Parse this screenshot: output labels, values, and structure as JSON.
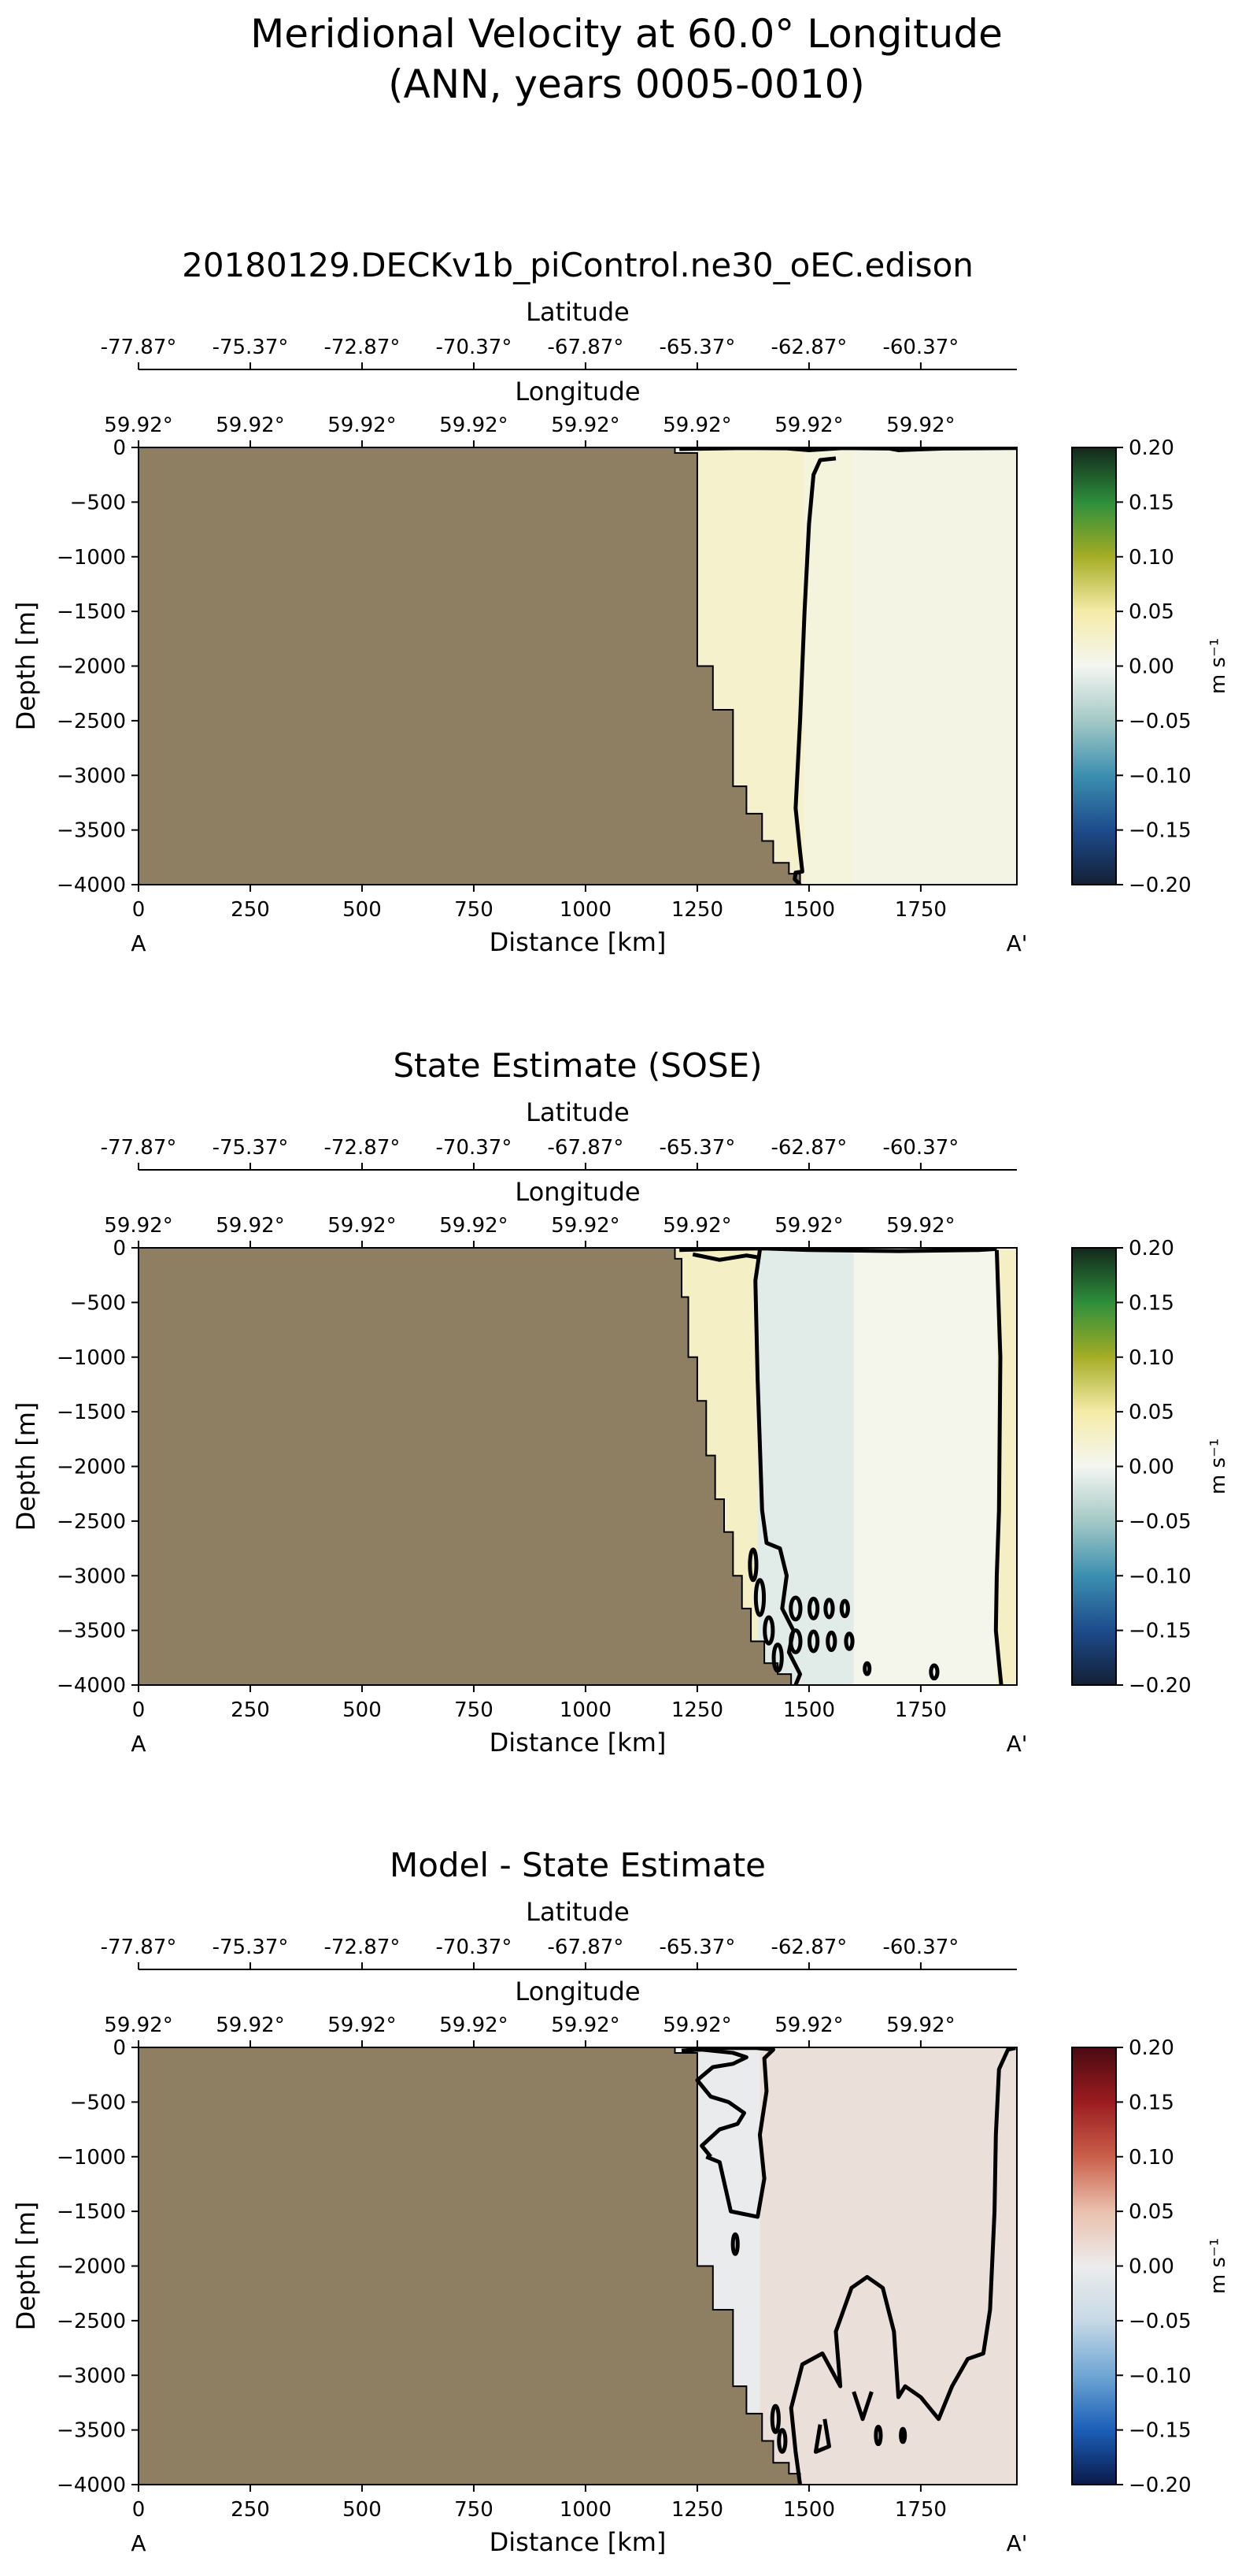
{
  "figure": {
    "suptitle_line1": "Meridional Velocity at 60.0° Longitude",
    "suptitle_line2": "(ANN, years 0005-0010)"
  },
  "colors": {
    "land": "#8e7f63",
    "contour": "#000000",
    "velocity_colormap": [
      "#132035",
      "#1d4b8c",
      "#3c8fb0",
      "#a4c9c6",
      "#f4f6f1",
      "#f5eba8",
      "#a5ad26",
      "#2d8e3b",
      "#13281c"
    ],
    "difference_colormap": [
      "#0b1a4a",
      "#1b5fb8",
      "#6fa6d4",
      "#c7d9e6",
      "#ececec",
      "#e9c0ad",
      "#c95f4a",
      "#9b1c1f",
      "#4a0a12"
    ]
  },
  "chart_data": [
    {
      "type": "heatmap",
      "panel": "model",
      "title": "20180129.DECKv1b_piControl.ne30_oEC.edison",
      "xlabel": "Distance [km]",
      "ylabel": "Depth [m]",
      "xlim": [
        0,
        1965
      ],
      "ylim": [
        -4000,
        0
      ],
      "x_ticks": [
        0,
        250,
        500,
        750,
        1000,
        1250,
        1500,
        1750
      ],
      "y_ticks": [
        0,
        -500,
        -1000,
        -1500,
        -2000,
        -2500,
        -3000,
        -3500,
        -4000
      ],
      "lat_axis_label": "Latitude",
      "lat_ticks": [
        "-77.87°",
        "-75.37°",
        "-72.87°",
        "-70.37°",
        "-67.87°",
        "-65.37°",
        "-62.87°",
        "-60.37°"
      ],
      "lon_axis_label": "Longitude",
      "lon_ticks": [
        "59.92°",
        "59.92°",
        "59.92°",
        "59.92°",
        "59.92°",
        "59.92°",
        "59.92°",
        "59.92°"
      ],
      "endpoint_start": "A",
      "endpoint_end": "A'",
      "colorbar": {
        "label": "m s⁻¹",
        "range": [
          -0.2,
          0.2
        ],
        "ticks": [
          "0.20",
          "0.15",
          "0.10",
          "0.05",
          "0.00",
          "−0.05",
          "−0.10",
          "−0.15",
          "−0.20"
        ],
        "colormap": "velocity"
      },
      "bathymetry": [
        [
          1200,
          0
        ],
        [
          1200,
          -50
        ],
        [
          1250,
          -50
        ],
        [
          1250,
          -2000
        ],
        [
          1285,
          -2000
        ],
        [
          1285,
          -2400
        ],
        [
          1330,
          -2400
        ],
        [
          1330,
          -3100
        ],
        [
          1360,
          -3100
        ],
        [
          1360,
          -3350
        ],
        [
          1395,
          -3350
        ],
        [
          1395,
          -3600
        ],
        [
          1420,
          -3600
        ],
        [
          1420,
          -3800
        ],
        [
          1455,
          -3800
        ],
        [
          1455,
          -3900
        ],
        [
          1480,
          -3900
        ],
        [
          1480,
          -4000
        ]
      ],
      "field_regions": [
        {
          "value": 0.025,
          "x": [
            1250,
            1490
          ]
        },
        {
          "value": 0.015,
          "x": [
            1490,
            1600
          ]
        },
        {
          "value": 0.008,
          "x": [
            1600,
            1965
          ]
        }
      ],
      "zero_contours": [
        [
          [
            1210,
            -15
          ],
          [
            1350,
            -5
          ],
          [
            1450,
            -8
          ],
          [
            1500,
            -25
          ],
          [
            1575,
            -5
          ],
          [
            1680,
            -10
          ],
          [
            1700,
            -25
          ],
          [
            1800,
            -10
          ],
          [
            1965,
            -5
          ]
        ],
        [
          [
            1560,
            -100
          ],
          [
            1525,
            -115
          ],
          [
            1510,
            -250
          ],
          [
            1500,
            -700
          ],
          [
            1490,
            -1500
          ],
          [
            1480,
            -2500
          ],
          [
            1470,
            -3300
          ],
          [
            1480,
            -3700
          ],
          [
            1485,
            -3880
          ],
          [
            1470,
            -3890
          ],
          [
            1468,
            -3950
          ],
          [
            1480,
            -4000
          ]
        ]
      ],
      "blobs": []
    },
    {
      "type": "heatmap",
      "panel": "observations",
      "title": "State Estimate (SOSE)",
      "xlabel": "Distance [km]",
      "ylabel": "Depth [m]",
      "xlim": [
        0,
        1965
      ],
      "ylim": [
        -4000,
        0
      ],
      "x_ticks": [
        0,
        250,
        500,
        750,
        1000,
        1250,
        1500,
        1750
      ],
      "y_ticks": [
        0,
        -500,
        -1000,
        -1500,
        -2000,
        -2500,
        -3000,
        -3500,
        -4000
      ],
      "lat_axis_label": "Latitude",
      "lat_ticks": [
        "-77.87°",
        "-75.37°",
        "-72.87°",
        "-70.37°",
        "-67.87°",
        "-65.37°",
        "-62.87°",
        "-60.37°"
      ],
      "lon_axis_label": "Longitude",
      "lon_ticks": [
        "59.92°",
        "59.92°",
        "59.92°",
        "59.92°",
        "59.92°",
        "59.92°",
        "59.92°",
        "59.92°"
      ],
      "endpoint_start": "A",
      "endpoint_end": "A'",
      "colorbar": {
        "label": "m s⁻¹",
        "range": [
          -0.2,
          0.2
        ],
        "ticks": [
          "0.20",
          "0.15",
          "0.10",
          "0.05",
          "0.00",
          "−0.05",
          "−0.10",
          "−0.15",
          "−0.20"
        ],
        "colormap": "velocity"
      },
      "bathymetry": [
        [
          1200,
          0
        ],
        [
          1200,
          -100
        ],
        [
          1215,
          -100
        ],
        [
          1215,
          -450
        ],
        [
          1230,
          -450
        ],
        [
          1230,
          -1000
        ],
        [
          1250,
          -1000
        ],
        [
          1250,
          -1400
        ],
        [
          1270,
          -1400
        ],
        [
          1270,
          -1900
        ],
        [
          1290,
          -1900
        ],
        [
          1290,
          -2300
        ],
        [
          1310,
          -2300
        ],
        [
          1310,
          -2600
        ],
        [
          1330,
          -2600
        ],
        [
          1330,
          -3000
        ],
        [
          1350,
          -3000
        ],
        [
          1350,
          -3300
        ],
        [
          1370,
          -3300
        ],
        [
          1370,
          -3600
        ],
        [
          1400,
          -3600
        ],
        [
          1400,
          -3800
        ],
        [
          1430,
          -3800
        ],
        [
          1430,
          -3900
        ],
        [
          1460,
          -3900
        ],
        [
          1460,
          -4000
        ]
      ],
      "field_regions": [
        {
          "value": 0.03,
          "x": [
            1200,
            1385
          ]
        },
        {
          "value": -0.012,
          "x": [
            1385,
            1600
          ]
        },
        {
          "value": 0.004,
          "x": [
            1600,
            1920
          ]
        },
        {
          "value": 0.03,
          "x": [
            1920,
            1965
          ]
        }
      ],
      "zero_contours": [
        [
          [
            1210,
            -20
          ],
          [
            1300,
            -10
          ],
          [
            1400,
            -5
          ],
          [
            1500,
            -20
          ],
          [
            1700,
            -30
          ],
          [
            1880,
            -20
          ],
          [
            1920,
            -10
          ]
        ],
        [
          [
            1240,
            -60
          ],
          [
            1300,
            -110
          ],
          [
            1360,
            -70
          ],
          [
            1390,
            -90
          ]
        ],
        [
          [
            1390,
            -20
          ],
          [
            1380,
            -300
          ],
          [
            1385,
            -1200
          ],
          [
            1395,
            -2400
          ],
          [
            1405,
            -2700
          ],
          [
            1435,
            -2750
          ],
          [
            1450,
            -3000
          ],
          [
            1440,
            -3300
          ],
          [
            1465,
            -3500
          ],
          [
            1455,
            -3700
          ],
          [
            1480,
            -3900
          ],
          [
            1470,
            -4000
          ]
        ],
        [
          [
            1920,
            -20
          ],
          [
            1928,
            -1000
          ],
          [
            1925,
            -2400
          ],
          [
            1920,
            -3000
          ],
          [
            1918,
            -3500
          ],
          [
            1925,
            -3800
          ],
          [
            1930,
            -4000
          ]
        ]
      ],
      "blobs": [
        [
          1375,
          -2900,
          8,
          140
        ],
        [
          1390,
          -3200,
          10,
          160
        ],
        [
          1410,
          -3500,
          10,
          120
        ],
        [
          1430,
          -3750,
          10,
          120
        ],
        [
          1470,
          -3300,
          12,
          100
        ],
        [
          1470,
          -3600,
          12,
          100
        ],
        [
          1510,
          -3300,
          10,
          90
        ],
        [
          1510,
          -3600,
          10,
          90
        ],
        [
          1545,
          -3300,
          9,
          80
        ],
        [
          1550,
          -3600,
          9,
          80
        ],
        [
          1580,
          -3300,
          8,
          70
        ],
        [
          1590,
          -3600,
          8,
          70
        ],
        [
          1630,
          -3850,
          6,
          50
        ],
        [
          1780,
          -3880,
          8,
          60
        ]
      ]
    },
    {
      "type": "heatmap",
      "panel": "difference",
      "title": "Model - State Estimate",
      "xlabel": "Distance [km]",
      "ylabel": "Depth [m]",
      "xlim": [
        0,
        1965
      ],
      "ylim": [
        -4000,
        0
      ],
      "x_ticks": [
        0,
        250,
        500,
        750,
        1000,
        1250,
        1500,
        1750
      ],
      "y_ticks": [
        0,
        -500,
        -1000,
        -1500,
        -2000,
        -2500,
        -3000,
        -3500,
        -4000
      ],
      "lat_axis_label": "Latitude",
      "lat_ticks": [
        "-77.87°",
        "-75.37°",
        "-72.87°",
        "-70.37°",
        "-67.87°",
        "-65.37°",
        "-62.87°",
        "-60.37°"
      ],
      "lon_axis_label": "Longitude",
      "lon_ticks": [
        "59.92°",
        "59.92°",
        "59.92°",
        "59.92°",
        "59.92°",
        "59.92°",
        "59.92°",
        "59.92°"
      ],
      "endpoint_start": "A",
      "endpoint_end": "A'",
      "colorbar": {
        "label": "m s⁻¹",
        "range": [
          -0.2,
          0.2
        ],
        "ticks": [
          "0.20",
          "0.15",
          "0.10",
          "0.05",
          "0.00",
          "−0.05",
          "−0.10",
          "−0.15",
          "−0.20"
        ],
        "colormap": "difference"
      },
      "bathymetry": [
        [
          1200,
          0
        ],
        [
          1200,
          -50
        ],
        [
          1250,
          -50
        ],
        [
          1250,
          -2000
        ],
        [
          1285,
          -2000
        ],
        [
          1285,
          -2400
        ],
        [
          1330,
          -2400
        ],
        [
          1330,
          -3100
        ],
        [
          1360,
          -3100
        ],
        [
          1360,
          -3350
        ],
        [
          1395,
          -3350
        ],
        [
          1395,
          -3600
        ],
        [
          1420,
          -3600
        ],
        [
          1420,
          -3800
        ],
        [
          1455,
          -3800
        ],
        [
          1455,
          -3900
        ],
        [
          1480,
          -3900
        ],
        [
          1480,
          -4000
        ]
      ],
      "field_regions": [
        {
          "value": -0.003,
          "x": [
            1250,
            1390
          ]
        },
        {
          "value": 0.015,
          "x": [
            1390,
            1965
          ]
        }
      ],
      "zero_contours": [
        [
          [
            1215,
            -30
          ],
          [
            1260,
            -20
          ],
          [
            1330,
            -50
          ],
          [
            1360,
            -90
          ],
          [
            1330,
            -150
          ],
          [
            1285,
            -180
          ],
          [
            1250,
            -300
          ],
          [
            1280,
            -450
          ],
          [
            1320,
            -500
          ],
          [
            1355,
            -600
          ],
          [
            1340,
            -700
          ],
          [
            1300,
            -750
          ],
          [
            1260,
            -900
          ],
          [
            1280,
            -1000
          ]
        ],
        [
          [
            1270,
            -1000
          ],
          [
            1300,
            -1050
          ],
          [
            1325,
            -1500
          ],
          [
            1385,
            -1550
          ],
          [
            1400,
            -1200
          ],
          [
            1390,
            -800
          ],
          [
            1405,
            -400
          ],
          [
            1400,
            -100
          ],
          [
            1420,
            -20
          ],
          [
            1380,
            -5
          ],
          [
            1300,
            -5
          ],
          [
            1215,
            -30
          ]
        ],
        [
          [
            1480,
            -4000
          ],
          [
            1470,
            -3700
          ],
          [
            1460,
            -3300
          ],
          [
            1485,
            -2900
          ],
          [
            1530,
            -2800
          ],
          [
            1570,
            -3100
          ],
          [
            1560,
            -2600
          ],
          [
            1595,
            -2200
          ],
          [
            1630,
            -2100
          ],
          [
            1665,
            -2200
          ],
          [
            1690,
            -2600
          ],
          [
            1700,
            -3200
          ],
          [
            1715,
            -3100
          ],
          [
            1750,
            -3200
          ],
          [
            1790,
            -3400
          ],
          [
            1820,
            -3100
          ],
          [
            1855,
            -2850
          ],
          [
            1890,
            -2800
          ],
          [
            1905,
            -2400
          ],
          [
            1915,
            -1500
          ],
          [
            1918,
            -800
          ],
          [
            1925,
            -200
          ],
          [
            1945,
            -20
          ],
          [
            1962,
            -5
          ]
        ],
        [
          [
            1535,
            -3400
          ],
          [
            1545,
            -3650
          ],
          [
            1515,
            -3700
          ],
          [
            1525,
            -3450
          ]
        ],
        [
          [
            1600,
            -3150
          ],
          [
            1620,
            -3400
          ],
          [
            1640,
            -3150
          ]
        ]
      ],
      "blobs": [
        [
          1335,
          -1800,
          6,
          90
        ],
        [
          1425,
          -3400,
          8,
          120
        ],
        [
          1440,
          -3600,
          8,
          100
        ],
        [
          1710,
          -3550,
          5,
          60
        ],
        [
          1655,
          -3550,
          6,
          80
        ]
      ]
    }
  ]
}
